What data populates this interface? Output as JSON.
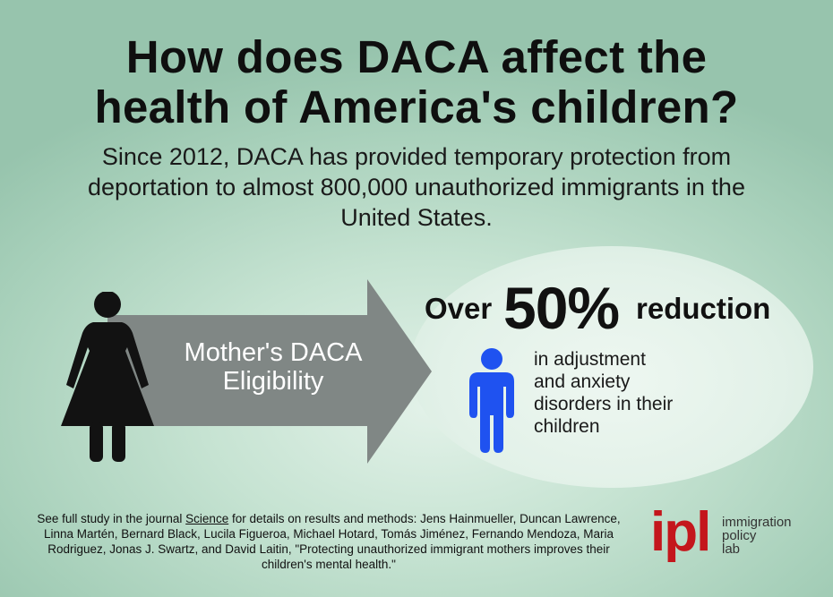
{
  "title": {
    "line1": "How does DACA affect the",
    "line2": "health of America's children?"
  },
  "subtitle": "Since 2012, DACA has provided temporary protection from deportation to almost 800,000 unauthorized immigrants in the United States.",
  "arrow": {
    "label_line1": "Mother's DACA",
    "label_line2": "Eligibility"
  },
  "headline": {
    "over": "Over",
    "percent": "50%",
    "reduction": "reduction"
  },
  "effect": {
    "line1": "in adjustment",
    "line2": "and anxiety",
    "line3": "disorders in their",
    "line4": "children"
  },
  "footer": {
    "prefix": "See full study in the journal ",
    "journal": "Science",
    "suffix": " for details on results and methods: Jens Hainmueller, Duncan Lawrence,",
    "line2": "Linna Martén, Bernard Black, Lucila Figueroa, Michael Hotard, Tomás Jiménez, Fernando Mendoza, Maria",
    "line3": "Rodriguez, Jonas J. Swartz, and David Laitin, \"Protecting unauthorized immigrant mothers improves their",
    "line4": "children's mental health.\""
  },
  "logo": {
    "mark": "ipl",
    "line1": "immigration",
    "line2": "policy",
    "line3": "lab"
  },
  "colors": {
    "background": "#a6cfb9",
    "arrow": "#808785",
    "child_icon": "#1f52f0",
    "woman_icon": "#121212",
    "logo_red": "#c4161c"
  },
  "icons": [
    "woman-icon",
    "arrow-icon",
    "child-icon"
  ]
}
